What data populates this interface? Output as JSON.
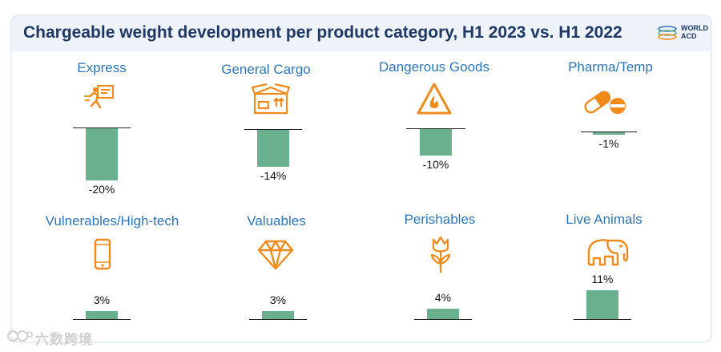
{
  "title": "Chargeable weight development per product category, H1 2023 vs. H1 2022",
  "logo": {
    "line1": "WORLD",
    "line2": "ACD"
  },
  "watermark": "六数跨境",
  "colors": {
    "bar": "#6bb08e",
    "title": "#1f3864",
    "label": "#2e75b6",
    "icon": "#f08a1c"
  },
  "chart_data": {
    "type": "bar",
    "title": "Chargeable weight development per product category, H1 2023 vs. H1 2022",
    "unit": "%",
    "categories": [
      "Express",
      "General Cargo",
      "Dangerous Goods",
      "Pharma/Temp",
      "Vulnerables/High-tech",
      "Valuables",
      "Perishables",
      "Live Animals"
    ],
    "values": [
      -20,
      -14,
      -10,
      -1,
      3,
      3,
      4,
      11
    ],
    "labels": [
      "-20%",
      "-14%",
      "-10%",
      "-1%",
      "3%",
      "3%",
      "4%",
      "11%"
    ],
    "icons": [
      "express-courier-icon",
      "cargo-box-icon",
      "hazard-fire-icon",
      "pill-capsule-icon",
      "smartphone-icon",
      "diamond-icon",
      "tulip-icon",
      "elephant-icon"
    ]
  }
}
